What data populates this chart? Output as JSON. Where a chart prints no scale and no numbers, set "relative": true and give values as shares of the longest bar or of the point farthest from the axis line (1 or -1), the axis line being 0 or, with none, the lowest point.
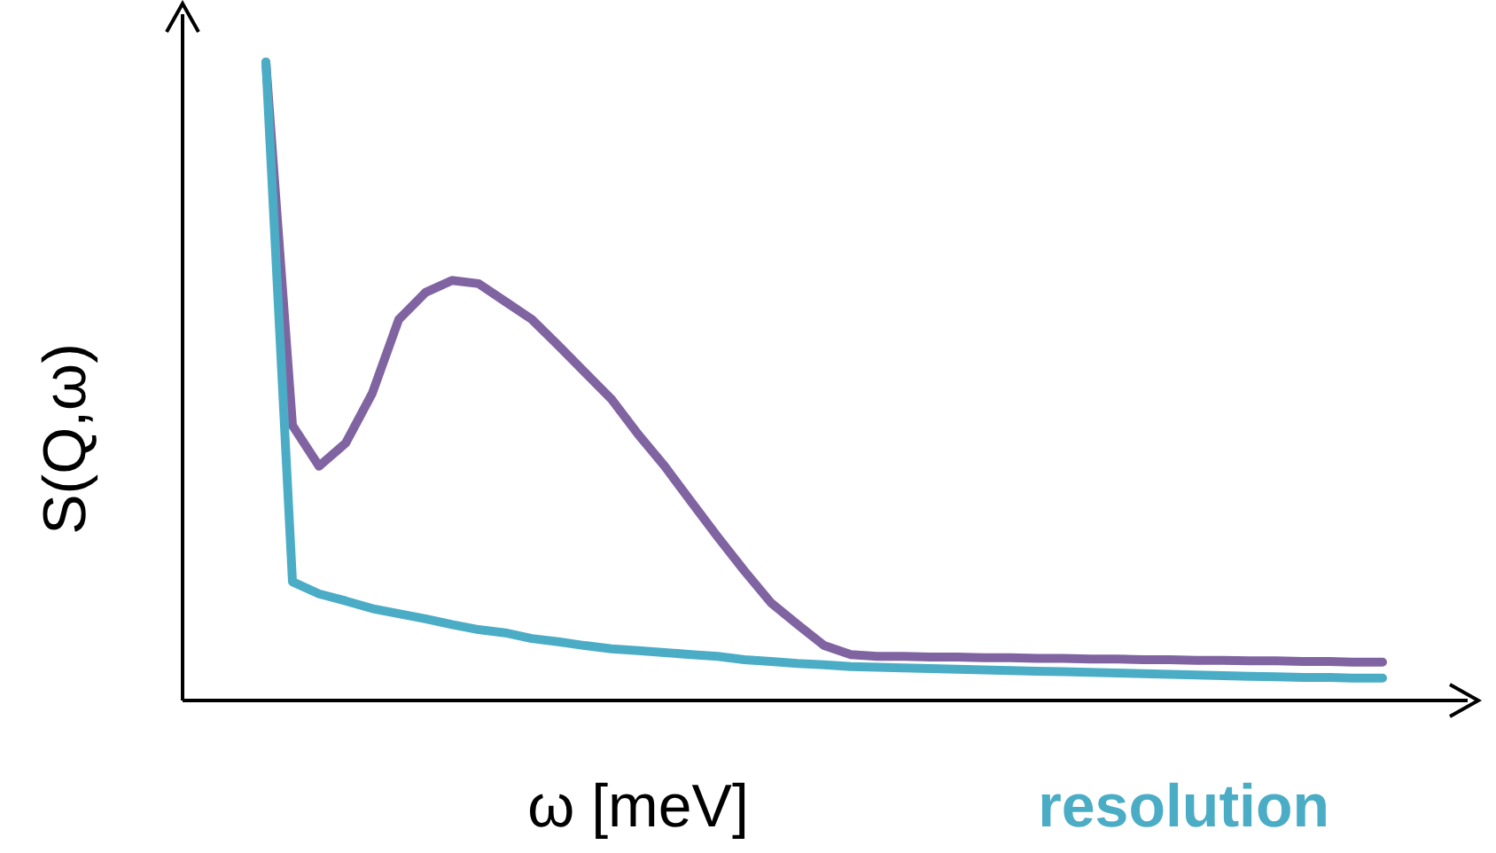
{
  "chart_data": {
    "type": "line",
    "relative": true,
    "xlabel": "ω [meV]",
    "ylabel": "S(Q,ω)",
    "legend": "bottom right",
    "categories": [
      null,
      null,
      null,
      null,
      null,
      null,
      null,
      null,
      null,
      null,
      null,
      null,
      null,
      null,
      null,
      null,
      null,
      null,
      null,
      null,
      null,
      null,
      null,
      null,
      null,
      null,
      null,
      null,
      null,
      null,
      null,
      null,
      null,
      null,
      null,
      null,
      null,
      null,
      null,
      null,
      null,
      null,
      null
    ],
    "series": [
      {
        "color": "#8064a2",
        "values": [
          1.0,
          0.431,
          0.367,
          0.403,
          0.481,
          0.597,
          0.639,
          0.658,
          0.653,
          0.625,
          0.597,
          0.556,
          0.514,
          0.472,
          0.417,
          0.367,
          0.311,
          0.256,
          0.203,
          0.153,
          0.119,
          0.086,
          0.072,
          0.069,
          0.069,
          0.068,
          0.068,
          0.067,
          0.067,
          0.066,
          0.066,
          0.065,
          0.065,
          0.064,
          0.064,
          0.063,
          0.063,
          0.062,
          0.062,
          0.061,
          0.061,
          0.06,
          0.06
        ]
      },
      {
        "name": "resolution",
        "color": "#4bacc6",
        "values": [
          1.0,
          0.186,
          0.167,
          0.156,
          0.144,
          0.136,
          0.128,
          0.119,
          0.111,
          0.106,
          0.097,
          0.092,
          0.086,
          0.081,
          0.078,
          0.075,
          0.072,
          0.069,
          0.064,
          0.061,
          0.058,
          0.056,
          0.053,
          0.052,
          0.051,
          0.05,
          0.049,
          0.048,
          0.047,
          0.046,
          0.045,
          0.044,
          0.043,
          0.042,
          0.041,
          0.04,
          0.039,
          0.038,
          0.037,
          0.036,
          0.036,
          0.035,
          0.035
        ]
      }
    ]
  }
}
